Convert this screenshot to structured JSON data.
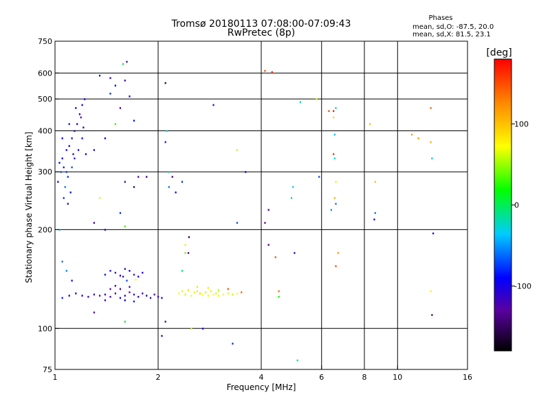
{
  "header": {
    "title_line1": "Tromsø 20180113 07:08:00-07:09:43",
    "title_line2": "RwPretec (8p)"
  },
  "phase_info": {
    "label": "Phases",
    "line_o": "mean, sd,O: -87.5, 20.0",
    "line_x": "mean, sd,X: 81.5, 23.1"
  },
  "colorbar": {
    "unit": "[deg]",
    "range": [
      -180,
      180
    ],
    "ticks": [
      100,
      0,
      -100
    ],
    "tick_labels": [
      "100",
      "0",
      "-100"
    ]
  },
  "chart_data": {
    "type": "scatter",
    "title": "Tromsø 20180113 07:08:00-07:09:43",
    "subtitle": "RwPretec (8p)",
    "xlabel": "Frequency [MHz]",
    "ylabel": "Stationary phase Virtual Height [km]",
    "x_scale": "log",
    "y_scale": "log",
    "xlim": [
      1,
      16
    ],
    "ylim": [
      75,
      750
    ],
    "x_ticks": [
      1,
      2,
      4,
      6,
      8,
      10,
      16
    ],
    "x_tick_labels": [
      "1",
      "2",
      "4",
      "6",
      "8",
      "10",
      "16"
    ],
    "x_grid": [
      2,
      4,
      6,
      8,
      10
    ],
    "y_ticks": [
      75,
      100,
      200,
      300,
      400,
      500,
      600,
      750
    ],
    "y_tick_labels": [
      "75",
      "100",
      "200",
      "300",
      "400",
      "500",
      "600",
      "750"
    ],
    "y_grid": [
      100,
      200,
      300,
      400,
      500,
      600
    ],
    "grid": true,
    "color_by": "phase_deg",
    "points": [
      [
        1.05,
        330,
        -95
      ],
      [
        1.08,
        350,
        -100
      ],
      [
        1.1,
        360,
        -90
      ],
      [
        1.06,
        310,
        -85
      ],
      [
        1.12,
        380,
        -105
      ],
      [
        1.14,
        400,
        -110
      ],
      [
        1.09,
        290,
        -80
      ],
      [
        1.04,
        300,
        -70
      ],
      [
        1.07,
        270,
        -60
      ],
      [
        1.11,
        260,
        -95
      ],
      [
        1.13,
        340,
        -100
      ],
      [
        1.16,
        420,
        -105
      ],
      [
        1.18,
        450,
        -110
      ],
      [
        1.15,
        470,
        -90
      ],
      [
        1.2,
        480,
        -95
      ],
      [
        1.22,
        500,
        -100
      ],
      [
        1.19,
        440,
        -120
      ],
      [
        1.1,
        420,
        -85
      ],
      [
        1.05,
        380,
        -95
      ],
      [
        1.03,
        320,
        -90
      ],
      [
        1.08,
        300,
        -75
      ],
      [
        1.12,
        310,
        -70
      ],
      [
        1.17,
        350,
        -100
      ],
      [
        1.2,
        380,
        -95
      ],
      [
        1.06,
        250,
        -80
      ],
      [
        1.09,
        240,
        -95
      ],
      [
        1.14,
        330,
        -110
      ],
      [
        1.21,
        410,
        -105
      ],
      [
        1.02,
        280,
        -90
      ],
      [
        1.23,
        340,
        -95
      ],
      [
        1.05,
        160,
        -60
      ],
      [
        1.03,
        200,
        -40
      ],
      [
        1.08,
        150,
        -55
      ],
      [
        1.12,
        140,
        -95
      ],
      [
        1.35,
        590,
        -95
      ],
      [
        1.45,
        580,
        -110
      ],
      [
        1.55,
        470,
        -120
      ],
      [
        1.6,
        570,
        -115
      ],
      [
        1.65,
        510,
        -100
      ],
      [
        1.62,
        650,
        -105
      ],
      [
        1.58,
        640,
        10
      ],
      [
        1.7,
        430,
        -85
      ],
      [
        1.5,
        420,
        30
      ],
      [
        1.4,
        380,
        -90
      ],
      [
        1.3,
        350,
        -95
      ],
      [
        1.45,
        520,
        -80
      ],
      [
        1.35,
        250,
        60
      ],
      [
        1.3,
        210,
        -120
      ],
      [
        1.4,
        200,
        -100
      ],
      [
        1.75,
        290,
        -130
      ],
      [
        1.6,
        280,
        -110
      ],
      [
        1.7,
        270,
        -150
      ],
      [
        1.55,
        225,
        -80
      ],
      [
        1.6,
        205,
        30
      ],
      [
        1.5,
        550,
        -100
      ],
      [
        1.85,
        290,
        -140
      ],
      [
        2.1,
        560,
        -160
      ],
      [
        2.12,
        400,
        -30
      ],
      [
        2.1,
        370,
        -110
      ],
      [
        2.15,
        300,
        -20
      ],
      [
        2.2,
        290,
        -140
      ],
      [
        2.15,
        270,
        -60
      ],
      [
        2.25,
        260,
        -90
      ],
      [
        2.35,
        280,
        -80
      ],
      [
        2.9,
        480,
        -110
      ],
      [
        3.4,
        350,
        60
      ],
      [
        3.6,
        300,
        -100
      ],
      [
        3.4,
        210,
        -70
      ],
      [
        2.4,
        180,
        80
      ],
      [
        2.45,
        170,
        -140
      ],
      [
        2.46,
        190,
        -150
      ],
      [
        2.4,
        170,
        40
      ],
      [
        2.35,
        150,
        -10
      ],
      [
        2.1,
        105,
        -110
      ],
      [
        2.5,
        100,
        60
      ],
      [
        2.7,
        100,
        -100
      ],
      [
        3.3,
        90,
        -80
      ],
      [
        2.05,
        95,
        -100
      ],
      [
        1.6,
        105,
        10
      ],
      [
        1.3,
        112,
        -130
      ],
      [
        1.4,
        127,
        -110
      ],
      [
        1.45,
        125,
        -120
      ],
      [
        1.5,
        128,
        -125
      ],
      [
        1.55,
        124,
        -100
      ],
      [
        1.6,
        126,
        -115
      ],
      [
        1.65,
        129,
        -130
      ],
      [
        1.7,
        127,
        -105
      ],
      [
        1.75,
        125,
        -110
      ],
      [
        1.8,
        128,
        -120
      ],
      [
        1.85,
        126,
        -100
      ],
      [
        1.9,
        124,
        -115
      ],
      [
        1.95,
        127,
        -125
      ],
      [
        2.0,
        125,
        -110
      ],
      [
        2.05,
        124,
        -105
      ],
      [
        1.35,
        126,
        -120
      ],
      [
        1.3,
        127,
        -115
      ],
      [
        1.25,
        125,
        -110
      ],
      [
        1.2,
        126,
        -100
      ],
      [
        1.15,
        128,
        -90
      ],
      [
        1.1,
        126,
        -95
      ],
      [
        1.05,
        124,
        -85
      ],
      [
        1.45,
        132,
        -130
      ],
      [
        1.55,
        132,
        -140
      ],
      [
        1.6,
        122,
        -95
      ],
      [
        1.4,
        122,
        -120
      ],
      [
        1.7,
        121,
        -100
      ],
      [
        1.5,
        135,
        -110
      ],
      [
        1.65,
        134,
        -120
      ],
      [
        1.45,
        150,
        -110
      ],
      [
        1.5,
        148,
        -120
      ],
      [
        1.55,
        145,
        -100
      ],
      [
        1.6,
        152,
        -115
      ],
      [
        1.65,
        150,
        -95
      ],
      [
        1.7,
        146,
        -130
      ],
      [
        1.75,
        144,
        -90
      ],
      [
        1.8,
        148,
        -105
      ],
      [
        1.4,
        146,
        -85
      ],
      [
        1.62,
        140,
        -70
      ],
      [
        1.72,
        141,
        70
      ],
      [
        1.58,
        144,
        -125
      ],
      [
        2.3,
        128,
        70
      ],
      [
        2.35,
        130,
        80
      ],
      [
        2.4,
        127,
        60
      ],
      [
        2.45,
        131,
        85
      ],
      [
        2.5,
        126,
        75
      ],
      [
        2.55,
        129,
        65
      ],
      [
        2.6,
        130,
        80
      ],
      [
        2.65,
        128,
        90
      ],
      [
        2.7,
        127,
        70
      ],
      [
        2.75,
        129,
        60
      ],
      [
        2.8,
        126,
        75
      ],
      [
        2.85,
        130,
        85
      ],
      [
        2.9,
        127,
        70
      ],
      [
        2.95,
        128,
        60
      ],
      [
        3.0,
        126,
        80
      ],
      [
        3.1,
        127,
        75
      ],
      [
        3.2,
        128,
        65
      ],
      [
        3.3,
        127,
        60
      ],
      [
        3.4,
        128,
        70
      ],
      [
        3.5,
        129,
        140
      ],
      [
        3.2,
        132,
        150
      ],
      [
        2.6,
        134,
        60
      ],
      [
        2.8,
        133,
        80
      ],
      [
        3.0,
        131,
        55
      ],
      [
        4.1,
        610,
        150
      ],
      [
        4.3,
        605,
        160
      ],
      [
        4.2,
        230,
        -120
      ],
      [
        4.1,
        210,
        -130
      ],
      [
        4.2,
        180,
        -140
      ],
      [
        4.4,
        165,
        150
      ],
      [
        4.5,
        130,
        140
      ],
      [
        4.5,
        125,
        20
      ],
      [
        4.95,
        270,
        -30
      ],
      [
        4.9,
        250,
        -20
      ],
      [
        5.0,
        170,
        -100
      ],
      [
        5.1,
        80,
        -10
      ],
      [
        5.2,
        490,
        -20
      ],
      [
        5.8,
        500,
        60
      ],
      [
        5.9,
        290,
        -70
      ],
      [
        6.4,
        230,
        -50
      ],
      [
        6.3,
        460,
        150
      ],
      [
        6.5,
        460,
        170
      ],
      [
        6.5,
        440,
        90
      ],
      [
        6.6,
        470,
        -20
      ],
      [
        6.55,
        390,
        -40
      ],
      [
        6.5,
        340,
        160
      ],
      [
        6.55,
        330,
        -30
      ],
      [
        6.6,
        280,
        80
      ],
      [
        6.55,
        250,
        110
      ],
      [
        6.6,
        240,
        -60
      ],
      [
        6.7,
        170,
        120
      ],
      [
        6.6,
        155,
        150
      ],
      [
        8.3,
        420,
        100
      ],
      [
        8.6,
        280,
        100
      ],
      [
        8.6,
        225,
        -60
      ],
      [
        8.55,
        215,
        -100
      ],
      [
        11,
        390,
        120
      ],
      [
        11.5,
        380,
        120
      ],
      [
        12.5,
        470,
        140
      ],
      [
        12.5,
        370,
        110
      ],
      [
        12.6,
        330,
        -40
      ],
      [
        12.7,
        195,
        -90
      ],
      [
        12.5,
        130,
        80
      ],
      [
        12.6,
        110,
        -150
      ]
    ]
  }
}
